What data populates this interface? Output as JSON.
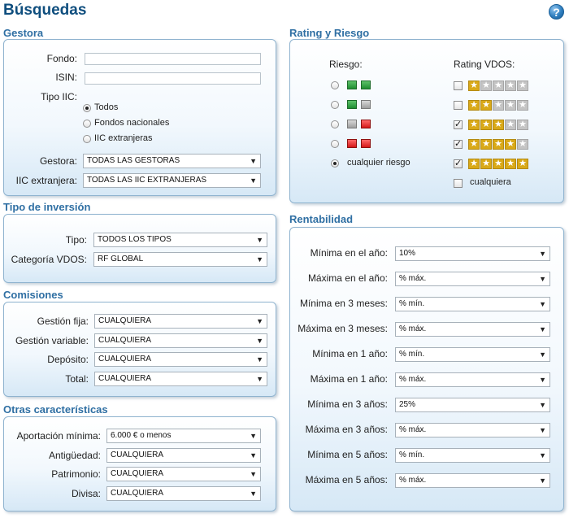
{
  "page": {
    "title": "Búsquedas",
    "help_icon": "?"
  },
  "gestora": {
    "section_title": "Gestora",
    "fondo_label": "Fondo:",
    "fondo_value": "",
    "isin_label": "ISIN:",
    "isin_value": "",
    "tipo_label": "Tipo IIC:",
    "tipo_options": [
      "Todos",
      "Fondos nacionales",
      "IIC extranjeras"
    ],
    "tipo_selected": 0,
    "gestora_label": "Gestora:",
    "gestora_value": "TODAS LAS GESTORAS",
    "extranjera_label": "IIC extranjera:",
    "extranjera_value": "TODAS LAS IIC EXTRANJERAS"
  },
  "tipo_inversion": {
    "section_title": "Tipo de inversión",
    "tipo_label": "Tipo:",
    "tipo_value": "TODOS LOS TIPOS",
    "categoria_label": "Categoría VDOS:",
    "categoria_value": "RF GLOBAL"
  },
  "comisiones": {
    "section_title": "Comisiones",
    "rows": [
      {
        "label": "Gestión fija:",
        "value": "CUALQUIERA"
      },
      {
        "label": "Gestión variable:",
        "value": "CUALQUIERA"
      },
      {
        "label": "Depósito:",
        "value": "CUALQUIERA"
      },
      {
        "label": "Total:",
        "value": "CUALQUIERA"
      }
    ]
  },
  "otras": {
    "section_title": "Otras características",
    "rows": [
      {
        "label": "Aportación mínima:",
        "value": "6.000 € o menos"
      },
      {
        "label": "Antigüedad:",
        "value": "CUALQUIERA"
      },
      {
        "label": "Patrimonio:",
        "value": "CUALQUIERA"
      },
      {
        "label": "Divisa:",
        "value": "CUALQUIERA"
      }
    ]
  },
  "rating": {
    "section_title": "Rating y Riesgo",
    "riesgo_header": "Riesgo:",
    "rating_header": "Rating VDOS:",
    "risk_colors": {
      "green": "#2e9b3d",
      "gray": "#a8a8a8",
      "red": "#e02020"
    },
    "risk_levels": [
      {
        "squares": [
          "green",
          "green"
        ]
      },
      {
        "squares": [
          "green",
          "gray"
        ]
      },
      {
        "squares": [
          "gray",
          "red"
        ]
      },
      {
        "squares": [
          "red",
          "red"
        ]
      }
    ],
    "risk_any_label": "cualquier riesgo",
    "risk_selected": "any",
    "star_color": "#d9a918",
    "star_levels": [
      {
        "stars": 1,
        "checked": false
      },
      {
        "stars": 2,
        "checked": false
      },
      {
        "stars": 3,
        "checked": true
      },
      {
        "stars": 4,
        "checked": true
      },
      {
        "stars": 5,
        "checked": true
      }
    ],
    "rating_any_label": "cualquiera",
    "rating_any_checked": false,
    "check_mark": "✓"
  },
  "rentabilidad": {
    "section_title": "Rentabilidad",
    "rows": [
      {
        "label": "Mínima en el año:",
        "value": "10%"
      },
      {
        "label": "Máxima en el año:",
        "value": "% máx."
      },
      {
        "label": "Mínima en 3 meses:",
        "value": "% mín."
      },
      {
        "label": "Máxima en 3 meses:",
        "value": "% máx."
      },
      {
        "label": "Mínima en 1 año:",
        "value": "% mín."
      },
      {
        "label": "Máxima en 1 año:",
        "value": "% máx."
      },
      {
        "label": "Mínima en 3 años:",
        "value": "25%"
      },
      {
        "label": "Máxima en 3 años:",
        "value": "% máx."
      },
      {
        "label": "Mínima en 5 años:",
        "value": "% mín."
      },
      {
        "label": "Máxima en 5 años:",
        "value": "% máx."
      }
    ]
  },
  "icons": {
    "dropdown": "chevron-down-icon",
    "help": "help-icon",
    "star": "star-icon"
  }
}
